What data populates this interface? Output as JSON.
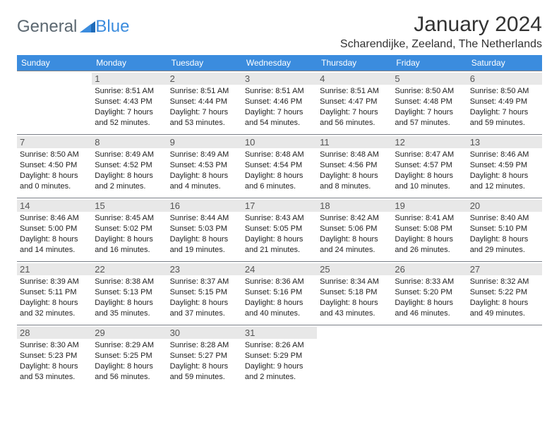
{
  "logo": {
    "text1": "General",
    "text2": "Blue"
  },
  "title": "January 2024",
  "location": "Scharendijke, Zeeland, The Netherlands",
  "colors": {
    "header_bg": "#3b8cde",
    "header_text": "#ffffff",
    "daynum_bg": "#e8e8e8",
    "border": "#7a7f87",
    "logo_gray": "#5b6770",
    "logo_blue": "#3b8cde"
  },
  "weekdays": [
    "Sunday",
    "Monday",
    "Tuesday",
    "Wednesday",
    "Thursday",
    "Friday",
    "Saturday"
  ],
  "weeks": [
    [
      null,
      {
        "n": "1",
        "sr": "8:51 AM",
        "ss": "4:43 PM",
        "dl": "7 hours and 52 minutes."
      },
      {
        "n": "2",
        "sr": "8:51 AM",
        "ss": "4:44 PM",
        "dl": "7 hours and 53 minutes."
      },
      {
        "n": "3",
        "sr": "8:51 AM",
        "ss": "4:46 PM",
        "dl": "7 hours and 54 minutes."
      },
      {
        "n": "4",
        "sr": "8:51 AM",
        "ss": "4:47 PM",
        "dl": "7 hours and 56 minutes."
      },
      {
        "n": "5",
        "sr": "8:50 AM",
        "ss": "4:48 PM",
        "dl": "7 hours and 57 minutes."
      },
      {
        "n": "6",
        "sr": "8:50 AM",
        "ss": "4:49 PM",
        "dl": "7 hours and 59 minutes."
      }
    ],
    [
      {
        "n": "7",
        "sr": "8:50 AM",
        "ss": "4:50 PM",
        "dl": "8 hours and 0 minutes."
      },
      {
        "n": "8",
        "sr": "8:49 AM",
        "ss": "4:52 PM",
        "dl": "8 hours and 2 minutes."
      },
      {
        "n": "9",
        "sr": "8:49 AM",
        "ss": "4:53 PM",
        "dl": "8 hours and 4 minutes."
      },
      {
        "n": "10",
        "sr": "8:48 AM",
        "ss": "4:54 PM",
        "dl": "8 hours and 6 minutes."
      },
      {
        "n": "11",
        "sr": "8:48 AM",
        "ss": "4:56 PM",
        "dl": "8 hours and 8 minutes."
      },
      {
        "n": "12",
        "sr": "8:47 AM",
        "ss": "4:57 PM",
        "dl": "8 hours and 10 minutes."
      },
      {
        "n": "13",
        "sr": "8:46 AM",
        "ss": "4:59 PM",
        "dl": "8 hours and 12 minutes."
      }
    ],
    [
      {
        "n": "14",
        "sr": "8:46 AM",
        "ss": "5:00 PM",
        "dl": "8 hours and 14 minutes."
      },
      {
        "n": "15",
        "sr": "8:45 AM",
        "ss": "5:02 PM",
        "dl": "8 hours and 16 minutes."
      },
      {
        "n": "16",
        "sr": "8:44 AM",
        "ss": "5:03 PM",
        "dl": "8 hours and 19 minutes."
      },
      {
        "n": "17",
        "sr": "8:43 AM",
        "ss": "5:05 PM",
        "dl": "8 hours and 21 minutes."
      },
      {
        "n": "18",
        "sr": "8:42 AM",
        "ss": "5:06 PM",
        "dl": "8 hours and 24 minutes."
      },
      {
        "n": "19",
        "sr": "8:41 AM",
        "ss": "5:08 PM",
        "dl": "8 hours and 26 minutes."
      },
      {
        "n": "20",
        "sr": "8:40 AM",
        "ss": "5:10 PM",
        "dl": "8 hours and 29 minutes."
      }
    ],
    [
      {
        "n": "21",
        "sr": "8:39 AM",
        "ss": "5:11 PM",
        "dl": "8 hours and 32 minutes."
      },
      {
        "n": "22",
        "sr": "8:38 AM",
        "ss": "5:13 PM",
        "dl": "8 hours and 35 minutes."
      },
      {
        "n": "23",
        "sr": "8:37 AM",
        "ss": "5:15 PM",
        "dl": "8 hours and 37 minutes."
      },
      {
        "n": "24",
        "sr": "8:36 AM",
        "ss": "5:16 PM",
        "dl": "8 hours and 40 minutes."
      },
      {
        "n": "25",
        "sr": "8:34 AM",
        "ss": "5:18 PM",
        "dl": "8 hours and 43 minutes."
      },
      {
        "n": "26",
        "sr": "8:33 AM",
        "ss": "5:20 PM",
        "dl": "8 hours and 46 minutes."
      },
      {
        "n": "27",
        "sr": "8:32 AM",
        "ss": "5:22 PM",
        "dl": "8 hours and 49 minutes."
      }
    ],
    [
      {
        "n": "28",
        "sr": "8:30 AM",
        "ss": "5:23 PM",
        "dl": "8 hours and 53 minutes."
      },
      {
        "n": "29",
        "sr": "8:29 AM",
        "ss": "5:25 PM",
        "dl": "8 hours and 56 minutes."
      },
      {
        "n": "30",
        "sr": "8:28 AM",
        "ss": "5:27 PM",
        "dl": "8 hours and 59 minutes."
      },
      {
        "n": "31",
        "sr": "8:26 AM",
        "ss": "5:29 PM",
        "dl": "9 hours and 2 minutes."
      },
      null,
      null,
      null
    ]
  ],
  "labels": {
    "sunrise": "Sunrise:",
    "sunset": "Sunset:",
    "daylight": "Daylight:"
  }
}
